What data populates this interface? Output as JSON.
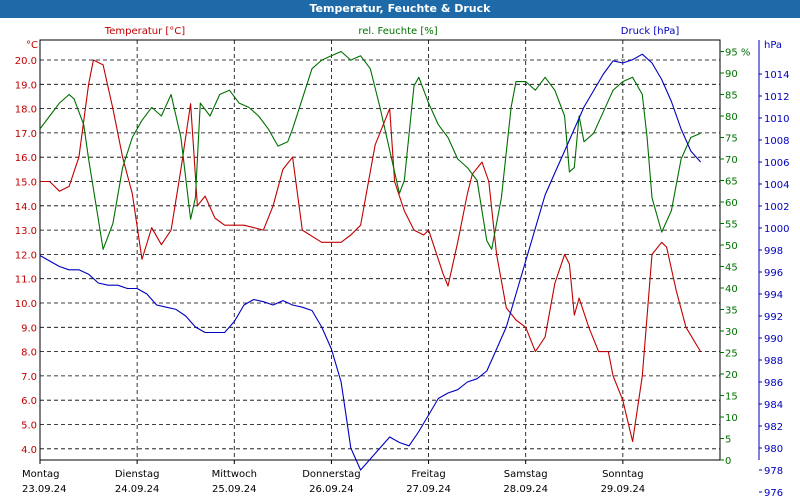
{
  "title": "Temperatur, Feuchte & Druck",
  "chart_data": {
    "type": "line",
    "grid": true,
    "x_categories": [
      {
        "day": "Montag",
        "date": "23.09.24"
      },
      {
        "day": "Dienstag",
        "date": "24.09.24"
      },
      {
        "day": "Mittwoch",
        "date": "25.09.24"
      },
      {
        "day": "Donnerstag",
        "date": "26.09.24"
      },
      {
        "day": "Freitag",
        "date": "27.09.24"
      },
      {
        "day": "Samstag",
        "date": "28.09.24"
      },
      {
        "day": "Sonntag",
        "date": "29.09.24"
      }
    ],
    "axes": {
      "temperature": {
        "unit": "°C",
        "min": 4.0,
        "max": 20.0,
        "step": 1.0,
        "decimals": 1,
        "color": "#c00000"
      },
      "humidity": {
        "unit": "%",
        "min": 0,
        "max": 95,
        "step": 5,
        "decimals": 0,
        "color": "#007000"
      },
      "pressure": {
        "unit": "hPa",
        "min": 976,
        "max": 1014,
        "step": 2,
        "decimals": 0,
        "color": "#0000c0"
      }
    },
    "series": [
      {
        "name": "Temperatur [°C]",
        "axis": "temperature",
        "color": "#c00000",
        "points": [
          [
            0,
            15.0
          ],
          [
            0.1,
            15.0
          ],
          [
            0.2,
            14.6
          ],
          [
            0.3,
            14.8
          ],
          [
            0.4,
            16.0
          ],
          [
            0.5,
            19.0
          ],
          [
            0.55,
            20.0
          ],
          [
            0.65,
            19.8
          ],
          [
            0.75,
            18.0
          ],
          [
            0.85,
            16.0
          ],
          [
            0.95,
            14.5
          ],
          [
            1.05,
            11.8
          ],
          [
            1.15,
            13.1
          ],
          [
            1.25,
            12.4
          ],
          [
            1.35,
            13.0
          ],
          [
            1.45,
            15.5
          ],
          [
            1.55,
            18.2
          ],
          [
            1.62,
            14.0
          ],
          [
            1.7,
            14.4
          ],
          [
            1.8,
            13.5
          ],
          [
            1.9,
            13.2
          ],
          [
            2.1,
            13.2
          ],
          [
            2.3,
            13.0
          ],
          [
            2.4,
            14.0
          ],
          [
            2.5,
            15.5
          ],
          [
            2.6,
            16.0
          ],
          [
            2.7,
            13.0
          ],
          [
            2.9,
            12.5
          ],
          [
            3.1,
            12.5
          ],
          [
            3.2,
            12.8
          ],
          [
            3.3,
            13.2
          ],
          [
            3.45,
            16.5
          ],
          [
            3.55,
            17.5
          ],
          [
            3.6,
            18.0
          ],
          [
            3.65,
            15.0
          ],
          [
            3.75,
            13.8
          ],
          [
            3.85,
            13.0
          ],
          [
            3.95,
            12.8
          ],
          [
            4.0,
            13.0
          ],
          [
            4.15,
            11.2
          ],
          [
            4.2,
            10.7
          ],
          [
            4.3,
            12.5
          ],
          [
            4.4,
            14.5
          ],
          [
            4.45,
            15.3
          ],
          [
            4.55,
            15.8
          ],
          [
            4.62,
            15.0
          ],
          [
            4.7,
            12.0
          ],
          [
            4.8,
            9.8
          ],
          [
            4.9,
            9.3
          ],
          [
            5.0,
            9.0
          ],
          [
            5.1,
            8.0
          ],
          [
            5.2,
            8.6
          ],
          [
            5.3,
            10.8
          ],
          [
            5.4,
            12.0
          ],
          [
            5.45,
            11.6
          ],
          [
            5.5,
            9.5
          ],
          [
            5.55,
            10.2
          ],
          [
            5.65,
            9.0
          ],
          [
            5.75,
            8.0
          ],
          [
            5.85,
            8.0
          ],
          [
            5.9,
            7.0
          ],
          [
            6.0,
            6.0
          ],
          [
            6.1,
            4.3
          ],
          [
            6.2,
            7.0
          ],
          [
            6.3,
            12.0
          ],
          [
            6.4,
            12.5
          ],
          [
            6.45,
            12.3
          ],
          [
            6.55,
            10.5
          ],
          [
            6.65,
            9.0
          ],
          [
            6.8,
            8.0
          ]
        ]
      },
      {
        "name": "rel. Feuchte [%]",
        "axis": "humidity",
        "color": "#007000",
        "points": [
          [
            0,
            77
          ],
          [
            0.1,
            80
          ],
          [
            0.2,
            83
          ],
          [
            0.3,
            85
          ],
          [
            0.35,
            84
          ],
          [
            0.45,
            78
          ],
          [
            0.5,
            70
          ],
          [
            0.6,
            56
          ],
          [
            0.65,
            49
          ],
          [
            0.75,
            55
          ],
          [
            0.85,
            68
          ],
          [
            0.95,
            75
          ],
          [
            1.05,
            79
          ],
          [
            1.15,
            82
          ],
          [
            1.25,
            80
          ],
          [
            1.35,
            85
          ],
          [
            1.45,
            75
          ],
          [
            1.55,
            56
          ],
          [
            1.6,
            61
          ],
          [
            1.65,
            83
          ],
          [
            1.75,
            80
          ],
          [
            1.85,
            85
          ],
          [
            1.95,
            86
          ],
          [
            2.05,
            83
          ],
          [
            2.15,
            82
          ],
          [
            2.25,
            80
          ],
          [
            2.35,
            77
          ],
          [
            2.45,
            73
          ],
          [
            2.55,
            74
          ],
          [
            2.6,
            77
          ],
          [
            2.7,
            84
          ],
          [
            2.8,
            91
          ],
          [
            2.9,
            93
          ],
          [
            3.0,
            94
          ],
          [
            3.1,
            95
          ],
          [
            3.2,
            93
          ],
          [
            3.3,
            94
          ],
          [
            3.4,
            91
          ],
          [
            3.5,
            82
          ],
          [
            3.6,
            72
          ],
          [
            3.7,
            62
          ],
          [
            3.75,
            65
          ],
          [
            3.85,
            87
          ],
          [
            3.9,
            89
          ],
          [
            4.0,
            83
          ],
          [
            4.1,
            78
          ],
          [
            4.2,
            75
          ],
          [
            4.3,
            70
          ],
          [
            4.4,
            68
          ],
          [
            4.5,
            65
          ],
          [
            4.6,
            51
          ],
          [
            4.65,
            49
          ],
          [
            4.75,
            61
          ],
          [
            4.85,
            82
          ],
          [
            4.9,
            88
          ],
          [
            5.0,
            88
          ],
          [
            5.1,
            86
          ],
          [
            5.2,
            89
          ],
          [
            5.3,
            86
          ],
          [
            5.4,
            80
          ],
          [
            5.45,
            67
          ],
          [
            5.5,
            68
          ],
          [
            5.55,
            80
          ],
          [
            5.6,
            74
          ],
          [
            5.7,
            76
          ],
          [
            5.8,
            81
          ],
          [
            5.9,
            86
          ],
          [
            6.0,
            88
          ],
          [
            6.1,
            89
          ],
          [
            6.2,
            85
          ],
          [
            6.25,
            75
          ],
          [
            6.3,
            61
          ],
          [
            6.4,
            53
          ],
          [
            6.5,
            58
          ],
          [
            6.6,
            70
          ],
          [
            6.7,
            75
          ],
          [
            6.8,
            76
          ]
        ]
      },
      {
        "name": "Druck [hPa]",
        "axis": "pressure",
        "color": "#0000c0",
        "points": [
          [
            0,
            997.5
          ],
          [
            0.1,
            997.0
          ],
          [
            0.2,
            996.5
          ],
          [
            0.3,
            996.2
          ],
          [
            0.4,
            996.2
          ],
          [
            0.5,
            995.8
          ],
          [
            0.6,
            995.0
          ],
          [
            0.7,
            994.8
          ],
          [
            0.8,
            994.8
          ],
          [
            0.9,
            994.5
          ],
          [
            1.0,
            994.5
          ],
          [
            1.1,
            994.0
          ],
          [
            1.2,
            993.0
          ],
          [
            1.3,
            992.8
          ],
          [
            1.4,
            992.6
          ],
          [
            1.5,
            992.0
          ],
          [
            1.6,
            991.0
          ],
          [
            1.7,
            990.5
          ],
          [
            1.8,
            990.5
          ],
          [
            1.9,
            990.5
          ],
          [
            2.0,
            991.5
          ],
          [
            2.1,
            993.0
          ],
          [
            2.2,
            993.5
          ],
          [
            2.3,
            993.3
          ],
          [
            2.4,
            993.0
          ],
          [
            2.5,
            993.4
          ],
          [
            2.6,
            993.0
          ],
          [
            2.7,
            992.8
          ],
          [
            2.8,
            992.5
          ],
          [
            2.9,
            991.0
          ],
          [
            3.0,
            989.0
          ],
          [
            3.1,
            986.0
          ],
          [
            3.15,
            983.0
          ],
          [
            3.2,
            980.0
          ],
          [
            3.3,
            978.0
          ],
          [
            3.4,
            979.0
          ],
          [
            3.5,
            980.0
          ],
          [
            3.6,
            981.0
          ],
          [
            3.7,
            980.5
          ],
          [
            3.8,
            980.2
          ],
          [
            3.9,
            981.5
          ],
          [
            4.0,
            983.0
          ],
          [
            4.1,
            984.5
          ],
          [
            4.2,
            985.0
          ],
          [
            4.3,
            985.3
          ],
          [
            4.4,
            986.0
          ],
          [
            4.5,
            986.3
          ],
          [
            4.6,
            987.0
          ],
          [
            4.7,
            989.0
          ],
          [
            4.8,
            991.0
          ],
          [
            4.9,
            994.0
          ],
          [
            5.0,
            997.0
          ],
          [
            5.1,
            1000.0
          ],
          [
            5.2,
            1003.0
          ],
          [
            5.3,
            1005.0
          ],
          [
            5.4,
            1007.0
          ],
          [
            5.5,
            1009.0
          ],
          [
            5.6,
            1011.0
          ],
          [
            5.7,
            1012.5
          ],
          [
            5.8,
            1014.0
          ],
          [
            5.9,
            1015.2
          ],
          [
            6.0,
            1015.0
          ],
          [
            6.1,
            1015.3
          ],
          [
            6.2,
            1015.8
          ],
          [
            6.3,
            1015.0
          ],
          [
            6.4,
            1013.5
          ],
          [
            6.5,
            1011.5
          ],
          [
            6.6,
            1009.0
          ],
          [
            6.7,
            1007.0
          ],
          [
            6.8,
            1006.0
          ]
        ]
      }
    ]
  }
}
